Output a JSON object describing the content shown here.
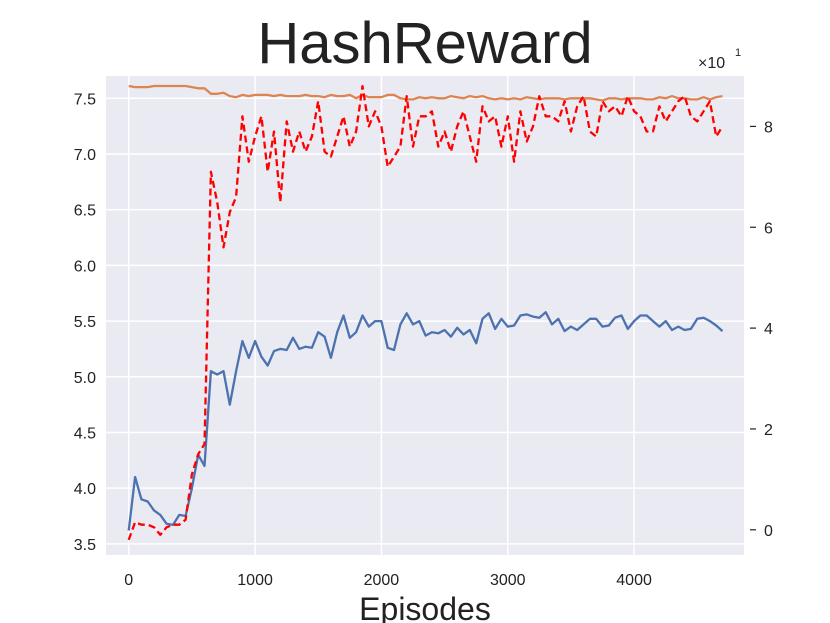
{
  "chart_data": {
    "type": "line",
    "title": "HashReward",
    "xlabel": "Episodes",
    "ylabel": "",
    "xlim": [
      -180,
      4870
    ],
    "xticks": [
      0,
      1000,
      2000,
      3000,
      4000
    ],
    "ylim_left": [
      3.4,
      7.7
    ],
    "yticks_left": [
      "3.5",
      "4.0",
      "4.5",
      "5.0",
      "5.5",
      "6.0",
      "6.5",
      "7.0",
      "7.5"
    ],
    "ylim_right": [
      -0.5,
      9.0
    ],
    "yticks_right": [
      "0",
      "2",
      "4",
      "6",
      "8"
    ],
    "right_multiplier_base": "×10",
    "right_multiplier_exp": "1",
    "grid": true,
    "background": "#eaeaf2",
    "series": [
      {
        "axis": "left",
        "color": "#4c72b0",
        "style": "solid",
        "x": [
          0,
          50,
          100,
          150,
          200,
          250,
          300,
          350,
          400,
          450,
          500,
          550,
          600,
          650,
          700,
          750,
          800,
          850,
          900,
          950,
          1000,
          1050,
          1100,
          1150,
          1200,
          1250,
          1300,
          1350,
          1400,
          1450,
          1500,
          1550,
          1600,
          1650,
          1700,
          1750,
          1800,
          1850,
          1900,
          1950,
          2000,
          2050,
          2100,
          2150,
          2200,
          2250,
          2300,
          2350,
          2400,
          2450,
          2500,
          2550,
          2600,
          2650,
          2700,
          2750,
          2800,
          2850,
          2900,
          2950,
          3000,
          3050,
          3100,
          3150,
          3200,
          3250,
          3300,
          3350,
          3400,
          3450,
          3500,
          3550,
          3600,
          3650,
          3700,
          3750,
          3800,
          3850,
          3900,
          3950,
          4000,
          4050,
          4100,
          4150,
          4200,
          4250,
          4300,
          4350,
          4400,
          4450,
          4500,
          4550,
          4600,
          4650,
          4700
        ],
        "values": [
          3.62,
          4.1,
          3.9,
          3.88,
          3.8,
          3.76,
          3.68,
          3.67,
          3.76,
          3.75,
          4.0,
          4.3,
          4.2,
          5.05,
          5.02,
          5.05,
          4.75,
          5.05,
          5.32,
          5.17,
          5.32,
          5.18,
          5.1,
          5.23,
          5.25,
          5.24,
          5.35,
          5.25,
          5.27,
          5.26,
          5.4,
          5.36,
          5.17,
          5.4,
          5.55,
          5.35,
          5.4,
          5.55,
          5.45,
          5.5,
          5.5,
          5.26,
          5.24,
          5.47,
          5.57,
          5.47,
          5.5,
          5.37,
          5.4,
          5.39,
          5.42,
          5.36,
          5.44,
          5.38,
          5.42,
          5.3,
          5.52,
          5.57,
          5.43,
          5.52,
          5.45,
          5.46,
          5.55,
          5.56,
          5.54,
          5.53,
          5.58,
          5.47,
          5.52,
          5.41,
          5.45,
          5.42,
          5.47,
          5.52,
          5.52,
          5.45,
          5.46,
          5.53,
          5.55,
          5.43,
          5.5,
          5.55,
          5.55,
          5.5,
          5.45,
          5.5,
          5.42,
          5.45,
          5.42,
          5.43,
          5.52,
          5.53,
          5.5,
          5.46,
          5.41
        ]
      },
      {
        "axis": "left",
        "color": "#dd8452",
        "style": "solid",
        "x": [
          0,
          50,
          100,
          150,
          200,
          250,
          300,
          350,
          400,
          450,
          500,
          550,
          600,
          650,
          700,
          750,
          800,
          850,
          900,
          950,
          1000,
          1050,
          1100,
          1150,
          1200,
          1250,
          1300,
          1350,
          1400,
          1450,
          1500,
          1550,
          1600,
          1650,
          1700,
          1750,
          1800,
          1850,
          1900,
          1950,
          2000,
          2050,
          2100,
          2150,
          2200,
          2250,
          2300,
          2350,
          2400,
          2450,
          2500,
          2550,
          2600,
          2650,
          2700,
          2750,
          2800,
          2850,
          2900,
          2950,
          3000,
          3050,
          3100,
          3150,
          3200,
          3250,
          3300,
          3350,
          3400,
          3450,
          3500,
          3550,
          3600,
          3650,
          3700,
          3750,
          3800,
          3850,
          3900,
          3950,
          4000,
          4050,
          4100,
          4150,
          4200,
          4250,
          4300,
          4350,
          4400,
          4450,
          4500,
          4550,
          4600,
          4650,
          4700
        ],
        "values": [
          7.61,
          7.6,
          7.6,
          7.6,
          7.61,
          7.61,
          7.61,
          7.61,
          7.61,
          7.61,
          7.6,
          7.59,
          7.59,
          7.54,
          7.54,
          7.55,
          7.52,
          7.51,
          7.53,
          7.52,
          7.53,
          7.53,
          7.53,
          7.52,
          7.53,
          7.52,
          7.52,
          7.52,
          7.53,
          7.52,
          7.52,
          7.51,
          7.53,
          7.52,
          7.52,
          7.53,
          7.5,
          7.53,
          7.51,
          7.51,
          7.51,
          7.53,
          7.53,
          7.5,
          7.49,
          7.49,
          7.51,
          7.5,
          7.51,
          7.5,
          7.5,
          7.52,
          7.51,
          7.5,
          7.52,
          7.51,
          7.52,
          7.5,
          7.49,
          7.5,
          7.49,
          7.5,
          7.49,
          7.51,
          7.5,
          7.49,
          7.5,
          7.5,
          7.5,
          7.49,
          7.5,
          7.5,
          7.5,
          7.5,
          7.49,
          7.48,
          7.5,
          7.5,
          7.49,
          7.5,
          7.5,
          7.5,
          7.49,
          7.49,
          7.51,
          7.5,
          7.52,
          7.5,
          7.5,
          7.49,
          7.49,
          7.51,
          7.49,
          7.51,
          7.52
        ]
      },
      {
        "axis": "right",
        "color": "#ff0000",
        "style": "dashed",
        "x": [
          0,
          50,
          100,
          150,
          200,
          250,
          300,
          350,
          400,
          450,
          500,
          550,
          600,
          650,
          700,
          750,
          800,
          850,
          900,
          950,
          1000,
          1050,
          1100,
          1150,
          1200,
          1250,
          1300,
          1350,
          1400,
          1450,
          1500,
          1550,
          1600,
          1650,
          1700,
          1750,
          1800,
          1850,
          1900,
          1950,
          2000,
          2050,
          2100,
          2150,
          2200,
          2250,
          2300,
          2350,
          2400,
          2450,
          2500,
          2550,
          2600,
          2650,
          2700,
          2750,
          2800,
          2850,
          2900,
          2950,
          3000,
          3050,
          3100,
          3150,
          3200,
          3250,
          3300,
          3350,
          3400,
          3450,
          3500,
          3550,
          3600,
          3650,
          3700,
          3750,
          3800,
          3850,
          3900,
          3950,
          4000,
          4050,
          4100,
          4150,
          4200,
          4250,
          4300,
          4350,
          4400,
          4450,
          4500,
          4550,
          4600,
          4650,
          4700
        ],
        "values": [
          -0.2,
          0.15,
          0.1,
          0.1,
          0.05,
          -0.1,
          0.05,
          0.1,
          0.1,
          0.2,
          1.1,
          1.5,
          1.7,
          7.1,
          6.5,
          5.6,
          6.3,
          6.6,
          8.2,
          7.3,
          7.8,
          8.2,
          7.1,
          7.9,
          6.5,
          8.1,
          7.5,
          7.9,
          7.5,
          7.8,
          8.5,
          7.5,
          7.4,
          7.8,
          8.2,
          7.6,
          7.9,
          8.8,
          8.0,
          8.3,
          8.0,
          7.2,
          7.4,
          7.6,
          8.6,
          7.6,
          8.2,
          8.2,
          8.3,
          7.6,
          7.9,
          7.5,
          8.0,
          8.3,
          7.8,
          7.3,
          8.4,
          8.1,
          8.2,
          7.6,
          8.2,
          7.3,
          8.3,
          7.7,
          8.0,
          8.6,
          8.2,
          8.2,
          8.1,
          8.5,
          7.9,
          8.4,
          8.6,
          7.9,
          7.8,
          8.5,
          8.3,
          8.4,
          8.2,
          8.6,
          8.3,
          8.2,
          7.9,
          7.9,
          8.4,
          8.1,
          8.3,
          8.5,
          8.6,
          8.2,
          8.1,
          8.3,
          8.5,
          7.8,
          8.0
        ]
      }
    ]
  }
}
